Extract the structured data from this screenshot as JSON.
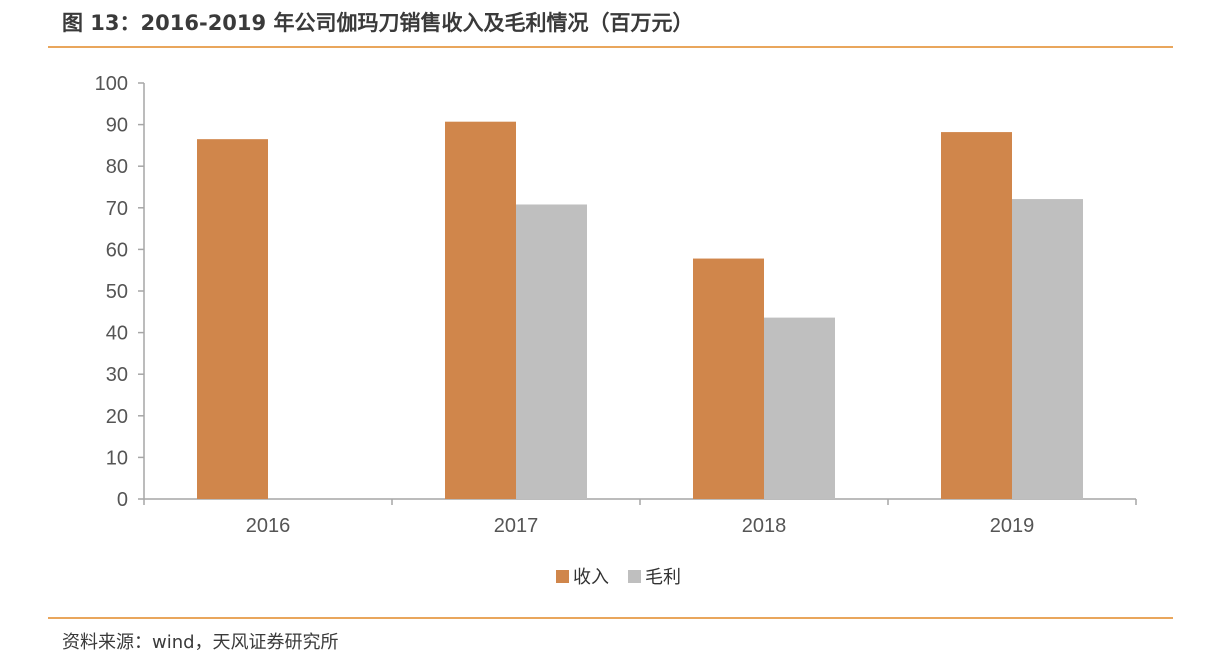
{
  "header": {
    "title": "图 13：2016-2019 年公司伽玛刀销售收入及毛利情况（百万元）"
  },
  "footer": {
    "source": "资料来源：wind，天风证券研究所"
  },
  "chart_data": {
    "type": "bar",
    "title": "图 13：2016-2019 年公司伽玛刀销售收入及毛利情况（百万元）",
    "categories": [
      "2016",
      "2017",
      "2018",
      "2019"
    ],
    "series": [
      {
        "name": "收入",
        "values": [
          86.5,
          90.7,
          57.8,
          88.2
        ],
        "color": "#d0864b"
      },
      {
        "name": "毛利",
        "values": [
          null,
          70.8,
          43.6,
          72.1
        ],
        "color": "#bfbfbf"
      }
    ],
    "xlabel": "",
    "ylabel": "",
    "ylim": [
      0,
      100
    ],
    "yticks": [
      "0",
      "10",
      "20",
      "30",
      "40",
      "50",
      "60",
      "70",
      "80",
      "90",
      "100"
    ],
    "grid": false,
    "legend": "bottom-center"
  }
}
